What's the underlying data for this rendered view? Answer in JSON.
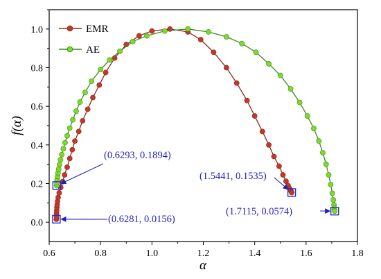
{
  "chart_data": {
    "type": "scatter",
    "xlabel": "α",
    "ylabel": "f(α)",
    "xlim": [
      0.6,
      1.8
    ],
    "ylim": [
      -0.1,
      1.1
    ],
    "xticks": [
      "0.6",
      "0.8",
      "1.0",
      "1.2",
      "1.4",
      "1.6",
      "1.8"
    ],
    "yticks": [
      "0.0",
      "0.2",
      "0.4",
      "0.6",
      "0.8",
      "1.0"
    ],
    "legend_position": "top-left",
    "grid": false,
    "series": [
      {
        "name": "EMR",
        "line_color": "#8b2a1a",
        "marker_color": "#c0392b",
        "points": [
          [
            0.6281,
            0.0156
          ],
          [
            0.6284,
            0.03
          ],
          [
            0.6288,
            0.045
          ],
          [
            0.6293,
            0.06
          ],
          [
            0.63,
            0.075
          ],
          [
            0.631,
            0.09
          ],
          [
            0.6325,
            0.108
          ],
          [
            0.635,
            0.128
          ],
          [
            0.639,
            0.152
          ],
          [
            0.645,
            0.18
          ],
          [
            0.652,
            0.21
          ],
          [
            0.66,
            0.245
          ],
          [
            0.67,
            0.285
          ],
          [
            0.68,
            0.33
          ],
          [
            0.69,
            0.375
          ],
          [
            0.7,
            0.42
          ],
          [
            0.715,
            0.47
          ],
          [
            0.73,
            0.525
          ],
          [
            0.75,
            0.585
          ],
          [
            0.77,
            0.645
          ],
          [
            0.795,
            0.71
          ],
          [
            0.82,
            0.775
          ],
          [
            0.855,
            0.85
          ],
          [
            0.9,
            0.92
          ],
          [
            0.95,
            0.965
          ],
          [
            1.0,
            0.99
          ],
          [
            1.07,
            1.0
          ],
          [
            1.14,
            0.985
          ],
          [
            1.19,
            0.945
          ],
          [
            1.24,
            0.88
          ],
          [
            1.29,
            0.8
          ],
          [
            1.33,
            0.72
          ],
          [
            1.37,
            0.63
          ],
          [
            1.4,
            0.55
          ],
          [
            1.43,
            0.47
          ],
          [
            1.455,
            0.4
          ],
          [
            1.475,
            0.34
          ],
          [
            1.495,
            0.29
          ],
          [
            1.51,
            0.245
          ],
          [
            1.522,
            0.212
          ],
          [
            1.53,
            0.19
          ],
          [
            1.536,
            0.174
          ],
          [
            1.54,
            0.164
          ],
          [
            1.5425,
            0.158
          ],
          [
            1.5441,
            0.1535
          ]
        ]
      },
      {
        "name": "AE",
        "line_color": "#3a8a1a",
        "marker_color": "#7fd82a",
        "points": [
          [
            0.6293,
            0.1894
          ],
          [
            0.63,
            0.205
          ],
          [
            0.631,
            0.22
          ],
          [
            0.6325,
            0.237
          ],
          [
            0.6345,
            0.255
          ],
          [
            0.637,
            0.275
          ],
          [
            0.64,
            0.298
          ],
          [
            0.644,
            0.323
          ],
          [
            0.649,
            0.35
          ],
          [
            0.655,
            0.38
          ],
          [
            0.662,
            0.412
          ],
          [
            0.67,
            0.447
          ],
          [
            0.68,
            0.487
          ],
          [
            0.692,
            0.53
          ],
          [
            0.705,
            0.575
          ],
          [
            0.72,
            0.622
          ],
          [
            0.74,
            0.672
          ],
          [
            0.765,
            0.73
          ],
          [
            0.8,
            0.79
          ],
          [
            0.835,
            0.84
          ],
          [
            0.875,
            0.885
          ],
          [
            0.925,
            0.935
          ],
          [
            0.98,
            0.965
          ],
          [
            1.05,
            0.99
          ],
          [
            1.14,
            1.0
          ],
          [
            1.22,
            0.985
          ],
          [
            1.29,
            0.96
          ],
          [
            1.35,
            0.925
          ],
          [
            1.405,
            0.88
          ],
          [
            1.455,
            0.82
          ],
          [
            1.5,
            0.76
          ],
          [
            1.54,
            0.69
          ],
          [
            1.575,
            0.62
          ],
          [
            1.605,
            0.55
          ],
          [
            1.63,
            0.485
          ],
          [
            1.65,
            0.42
          ],
          [
            1.665,
            0.36
          ],
          [
            1.678,
            0.3
          ],
          [
            1.688,
            0.245
          ],
          [
            1.696,
            0.195
          ],
          [
            1.702,
            0.15
          ],
          [
            1.706,
            0.115
          ],
          [
            1.7085,
            0.09
          ],
          [
            1.71,
            0.073
          ],
          [
            1.7115,
            0.0574
          ]
        ]
      }
    ],
    "annotations": [
      {
        "text": "(0.6293, 0.1894)",
        "point": [
          0.6293,
          0.1894
        ]
      },
      {
        "text": "(0.6281, 0.0156)",
        "point": [
          0.6281,
          0.0156
        ]
      },
      {
        "text": "(1.5441, 0.1535)",
        "point": [
          1.5441,
          0.1535
        ]
      },
      {
        "text": "(1.7115, 0.0574)",
        "point": [
          1.7115,
          0.0574
        ]
      }
    ]
  }
}
